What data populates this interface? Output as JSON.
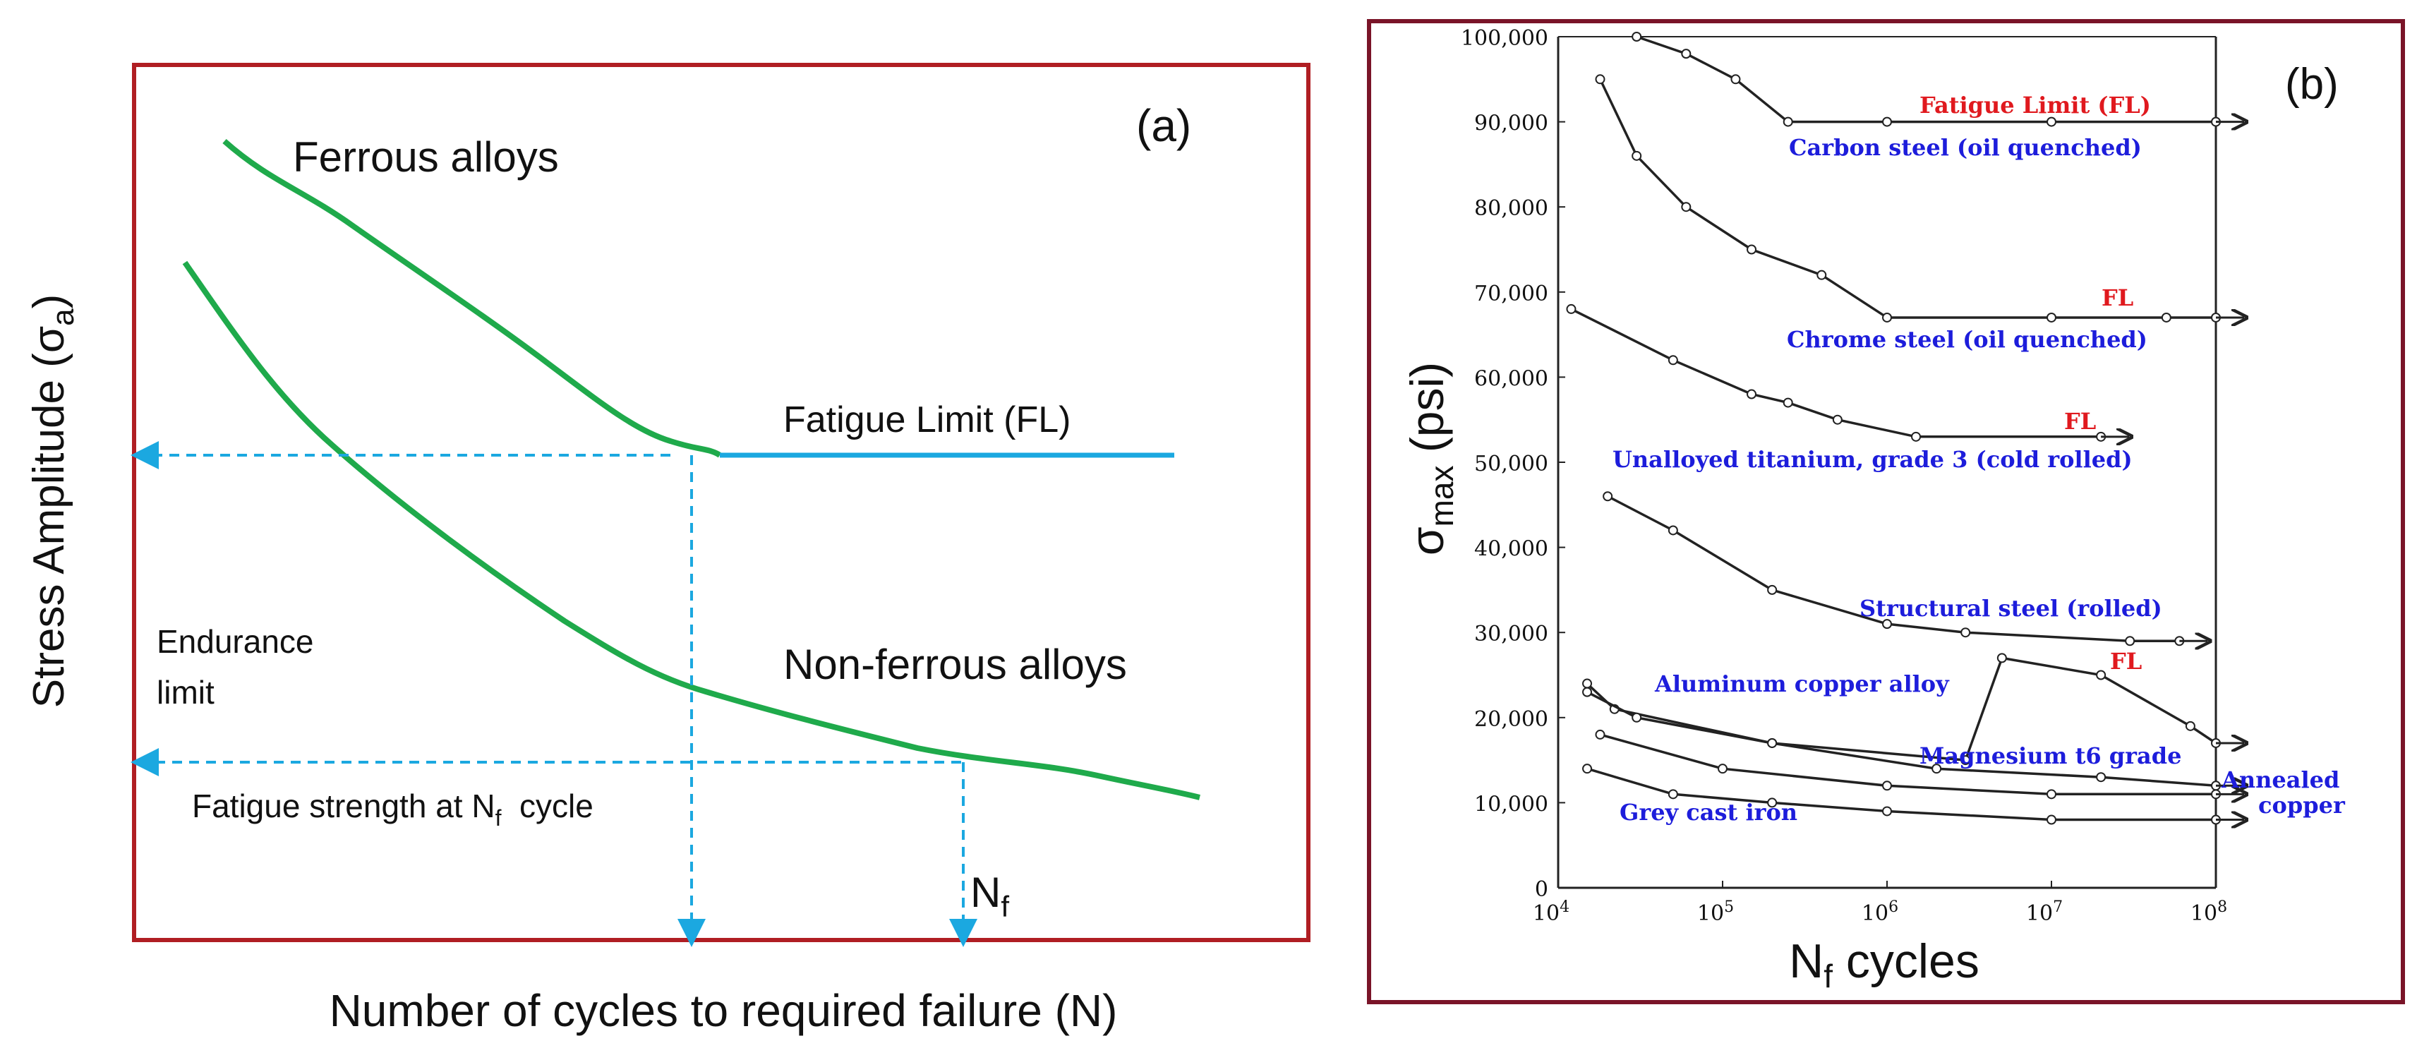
{
  "panel_a": {
    "label": "(a)",
    "ylabel": "Stress Amplitude (σa)",
    "ylabel_main": "Stress Amplitude (σ",
    "ylabel_sub": "a",
    "ylabel_close": ")",
    "xlabel": "Number of cycles to required failure (N)",
    "ferrous_label": "Ferrous alloys",
    "nonferrous_label": "Non-ferrous alloys",
    "fatigue_limit_label": "Fatigue Limit (FL)",
    "endurance_line1": "Endurance",
    "endurance_line2": "limit",
    "fatigue_strength_pre": "Fatigue strength at N",
    "fatigue_strength_sub": "f",
    "fatigue_strength_post": "  cycle",
    "nf_main": "N",
    "nf_sub": "f",
    "colors": {
      "frame": "#b01e23",
      "curve": "#1faa4b",
      "limit": "#1ba8e0",
      "dash": "#1ba8e0"
    }
  },
  "chart_data": [
    {
      "type": "line",
      "title": "(a)",
      "xlabel": "Number of cycles to required failure (N)",
      "ylabel": "Stress Amplitude (σa)",
      "axis_ticks": "none",
      "series": [
        {
          "name": "Ferrous alloys",
          "trend": "decreasing, then flat at Fatigue Limit (FL)"
        },
        {
          "name": "Non-ferrous alloys",
          "trend": "continuously decreasing, no fatigue limit"
        }
      ],
      "annotations": [
        "Fatigue Limit (FL)",
        "Endurance limit",
        "Fatigue strength at Nf cycle",
        "Nf"
      ]
    },
    {
      "type": "line",
      "title": "(b)",
      "xlabel": "Nf cycles",
      "ylabel": "σmax (psi)",
      "xscale": "log",
      "xlim": [
        10000,
        100000000
      ],
      "ylim": [
        0,
        100000
      ],
      "x_tick_labels": [
        {
          "base": "10",
          "exp": "4"
        },
        {
          "base": "10",
          "exp": "5"
        },
        {
          "base": "10",
          "exp": "6"
        },
        {
          "base": "10",
          "exp": "7"
        },
        {
          "base": "10",
          "exp": "8"
        }
      ],
      "y_tick_labels": [
        "0",
        "10,000",
        "20,000",
        "30,000",
        "40,000",
        "50,000",
        "60,000",
        "70,000",
        "80,000",
        "90,000",
        "100,000"
      ],
      "series": [
        {
          "name": "Carbon steel (oil quenched)",
          "x": [
            30000,
            60000,
            120000,
            250000,
            1000000,
            10000000,
            100000000
          ],
          "y": [
            100000,
            98000,
            95000,
            90000,
            90000,
            90000,
            90000
          ]
        },
        {
          "name": "Chrome steel (oil quenched)",
          "x": [
            18000,
            30000,
            60000,
            150000,
            400000,
            1000000,
            10000000,
            50000000,
            100000000
          ],
          "y": [
            95000,
            86000,
            80000,
            75000,
            72000,
            67000,
            67000,
            67000,
            67000
          ]
        },
        {
          "name": "Unalloyed titanium, grade 3 (cold rolled)",
          "x": [
            12000,
            50000,
            150000,
            250000,
            500000,
            1500000,
            20000000
          ],
          "y": [
            68000,
            62000,
            58000,
            57000,
            55000,
            53000,
            53000
          ]
        },
        {
          "name": "Structural steel (rolled)",
          "x": [
            20000,
            50000,
            200000,
            1000000,
            3000000,
            30000000,
            60000000
          ],
          "y": [
            46000,
            42000,
            35000,
            31000,
            30000,
            29000,
            29000
          ]
        },
        {
          "name": "Aluminum copper alloy",
          "x": [
            15000,
            22000,
            200000,
            2000000,
            20000000,
            100000000
          ],
          "y": [
            24000,
            21000,
            17000,
            14000,
            13000,
            12000
          ]
        },
        {
          "name": "Magnesium t6 grade",
          "x": [
            15000,
            30000,
            200000,
            3000000,
            5000000,
            20000000,
            70000000,
            100000000
          ],
          "y": [
            23000,
            20000,
            17000,
            15000,
            27000,
            25000,
            19000,
            17000
          ]
        },
        {
          "name": "Annealed copper",
          "x": [
            18000,
            100000,
            1000000,
            10000000,
            100000000
          ],
          "y": [
            18000,
            14000,
            12000,
            11000,
            11000
          ]
        },
        {
          "name": "Grey cast iron",
          "x": [
            15000,
            50000,
            200000,
            1000000,
            10000000,
            100000000
          ],
          "y": [
            14000,
            11000,
            10000,
            9000,
            8000,
            8000
          ]
        }
      ],
      "annotations": [
        "Fatigue Limit (FL)",
        "FL",
        "FL",
        "FL"
      ]
    }
  ],
  "panel_b": {
    "label": "(b)",
    "xlabel_main": "N",
    "xlabel_sub": "f",
    "xlabel_post": " cycles",
    "ylabel_main": "σ",
    "ylabel_sub": "max",
    "ylabel_post": " (psi)",
    "fl_title": "Fatigue Limit (FL)",
    "fl": "FL",
    "series_labels": {
      "carbon": "Carbon  steel (oil quenched)",
      "chrome": "Chrome  steel (oil quenched)",
      "titanium": "Unalloyed titanium, grade 3 (cold rolled)",
      "structural": "Structural steel (rolled)",
      "aluminum": "Aluminum copper alloy",
      "magnesium": "Magnesium t6 grade",
      "copper_line1": "Annealed",
      "copper_line2": "copper",
      "castiron": "Grey cast iron"
    },
    "colors": {
      "frame": "#7a1428",
      "label_blue": "#1d1ddb",
      "label_red": "#e0191e",
      "curve": "#222222"
    }
  }
}
